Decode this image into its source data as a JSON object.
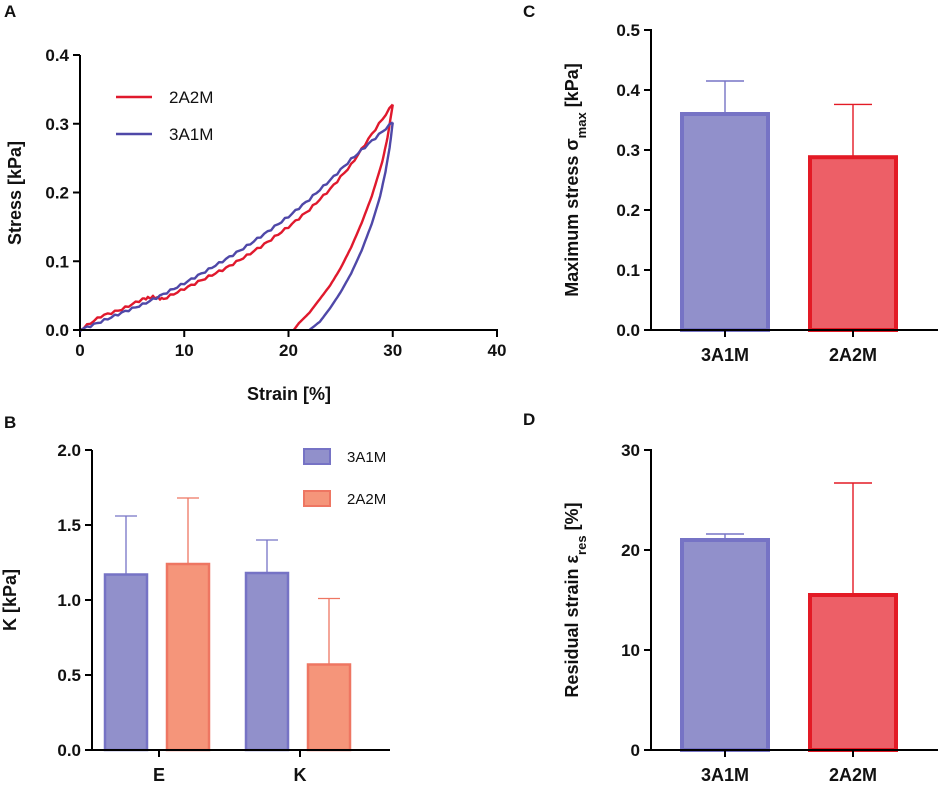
{
  "colors": {
    "blue_line": "#4f48a8",
    "red_line": "#e0192d",
    "blue_fill": "#9190cb",
    "blue_edge": "#7673c5",
    "red_fill": "#ed5f67",
    "red_edge": "#e31a25",
    "orange_fill": "#f5957a",
    "orange_edge": "#ee7662",
    "axis": "#000000"
  },
  "panels": {
    "a": {
      "letter": "A"
    },
    "b": {
      "letter": "B"
    },
    "c": {
      "letter": "C"
    },
    "d": {
      "letter": "D"
    }
  },
  "chart_data": [
    {
      "panel": "A",
      "type": "line",
      "title": "",
      "xlabel": "Strain [%]",
      "ylabel": "Stress [kPa]",
      "xlim": [
        0,
        40
      ],
      "ylim": [
        0,
        0.4
      ],
      "xticks": [
        0,
        10,
        20,
        30,
        40
      ],
      "xtick_labels": [
        "0",
        "10",
        "20",
        "30",
        "40"
      ],
      "yticks": [
        0,
        0.1,
        0.2,
        0.3,
        0.4
      ],
      "ytick_labels": [
        "0.0",
        "0.1",
        "0.2",
        "0.3",
        "0.4"
      ],
      "legend_position": "top-left",
      "series": [
        {
          "name": "2A2M",
          "color": "#e0192d",
          "loading": {
            "x": [
              0,
              2,
              4,
              6,
              7,
              8,
              10,
              12,
              14,
              16,
              18,
              20,
              22,
              24,
              26,
              28,
              30
            ],
            "y": [
              0.0,
              0.02,
              0.03,
              0.045,
              0.048,
              0.045,
              0.06,
              0.075,
              0.09,
              0.108,
              0.128,
              0.15,
              0.175,
              0.205,
              0.24,
              0.285,
              0.328
            ]
          },
          "unloading": {
            "x": [
              30,
              29.5,
              29,
              28,
              27,
              26,
              25,
              24,
              23,
              22,
              21,
              20.5
            ],
            "y": [
              0.328,
              0.28,
              0.245,
              0.195,
              0.155,
              0.12,
              0.09,
              0.065,
              0.045,
              0.025,
              0.01,
              0.0
            ]
          }
        },
        {
          "name": "3A1M",
          "color": "#4f48a8",
          "loading": {
            "x": [
              0,
              2,
              4,
              6,
              8,
              10,
              12,
              14,
              16,
              18,
              20,
              22,
              24,
              26,
              28,
              30
            ],
            "y": [
              0.0,
              0.012,
              0.025,
              0.037,
              0.052,
              0.068,
              0.085,
              0.103,
              0.122,
              0.143,
              0.165,
              0.19,
              0.218,
              0.248,
              0.275,
              0.302
            ]
          },
          "unloading": {
            "x": [
              30,
              29.7,
              29.3,
              28.8,
              28,
              27,
              26,
              25,
              24,
              23,
              22
            ],
            "y": [
              0.302,
              0.265,
              0.23,
              0.195,
              0.155,
              0.115,
              0.082,
              0.055,
              0.032,
              0.012,
              0.0
            ]
          }
        }
      ]
    },
    {
      "panel": "B",
      "type": "bar",
      "title": "",
      "xlabel": "",
      "ylabel": "K [kPa]",
      "categories": [
        "E",
        "K"
      ],
      "ylim": [
        0,
        2.0
      ],
      "yticks": [
        0,
        0.5,
        1.0,
        1.5,
        2.0
      ],
      "ytick_labels": [
        "0.0",
        "0.5",
        "1.0",
        "1.5",
        "2.0"
      ],
      "legend_position": "top-right",
      "series": [
        {
          "name": "3A1M",
          "values": [
            1.17,
            1.18
          ],
          "errors": [
            0.39,
            0.22
          ]
        },
        {
          "name": "2A2M",
          "values": [
            1.24,
            0.57
          ],
          "errors": [
            0.44,
            0.44
          ]
        }
      ]
    },
    {
      "panel": "C",
      "type": "bar",
      "title": "",
      "xlabel": "",
      "ylabel": "Maximum stress σmax [kPa]",
      "ylabel_main": "Maximum stress σ",
      "ylabel_sub": "max",
      "ylabel_unit": " [kPa]",
      "categories": [
        "3A1M",
        "2A2M"
      ],
      "values": [
        0.36,
        0.288
      ],
      "errors": [
        0.055,
        0.088
      ],
      "ylim": [
        0,
        0.5
      ],
      "yticks": [
        0,
        0.1,
        0.2,
        0.3,
        0.4,
        0.5
      ],
      "ytick_labels": [
        "0.0",
        "0.1",
        "0.2",
        "0.3",
        "0.4",
        "0.5"
      ]
    },
    {
      "panel": "D",
      "type": "bar",
      "title": "",
      "xlabel": "",
      "ylabel": "Residual strain εres [%]",
      "ylabel_main": "Residual strain ε",
      "ylabel_sub": "res",
      "ylabel_unit": " [%]",
      "categories": [
        "3A1M",
        "2A2M"
      ],
      "values": [
        21.0,
        15.5
      ],
      "errors": [
        0.6,
        11.2
      ],
      "ylim": [
        0,
        30
      ],
      "yticks": [
        0,
        10,
        20,
        30
      ],
      "ytick_labels": [
        "0",
        "10",
        "20",
        "30"
      ]
    }
  ]
}
